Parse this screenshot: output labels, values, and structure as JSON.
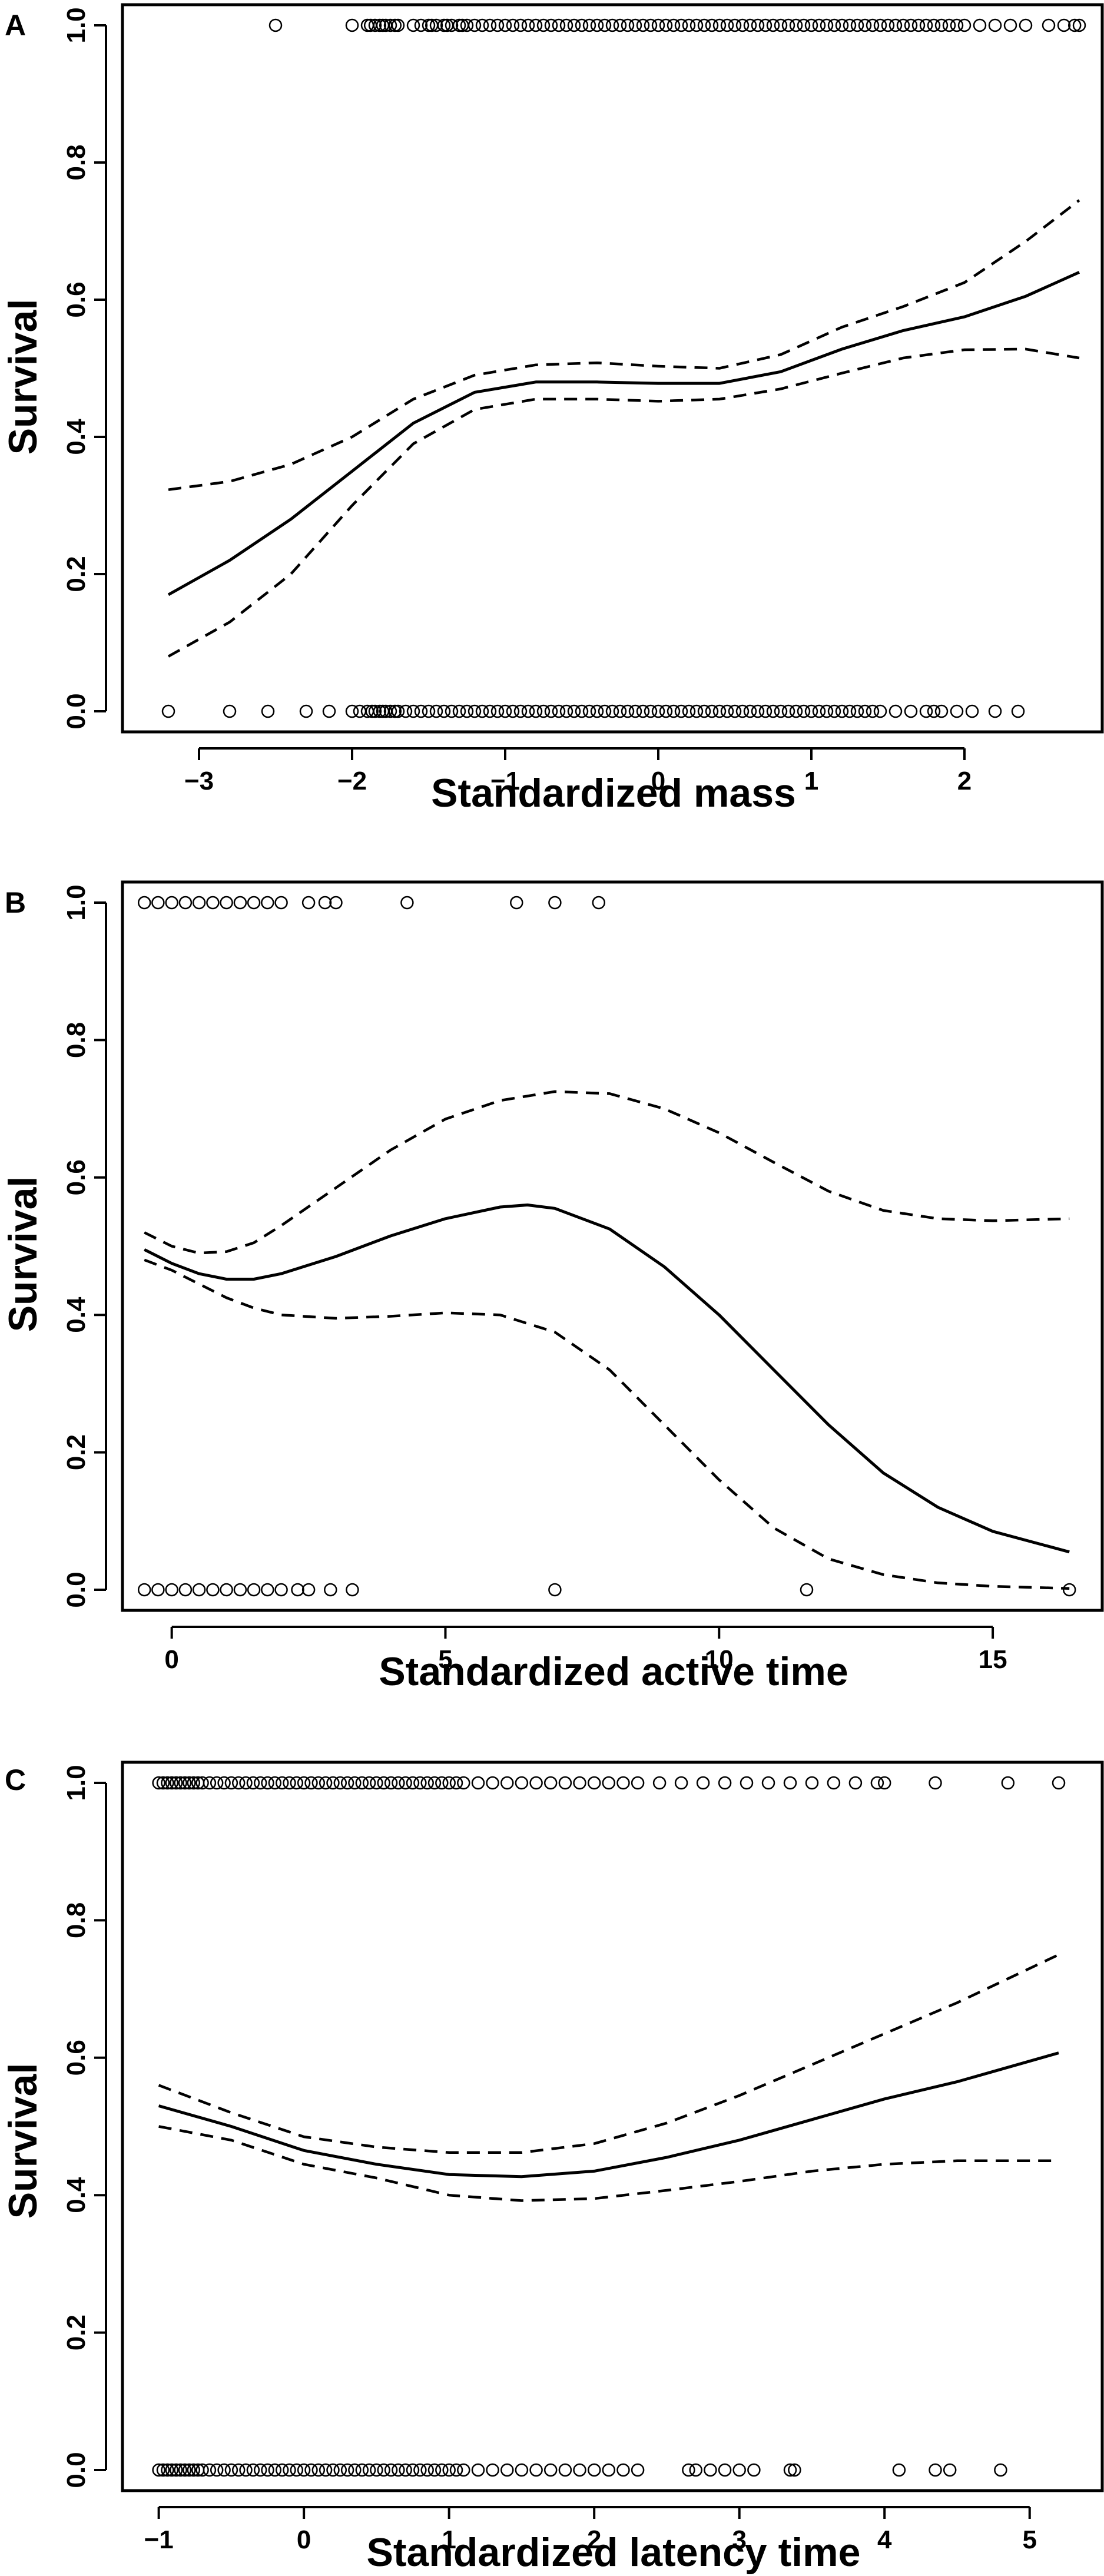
{
  "chart_data": [
    {
      "panel": "A",
      "type": "line",
      "xlabel": "Standardized mass",
      "ylabel": "Survival",
      "xlim": [
        -3.5,
        2.9
      ],
      "ylim": [
        -0.03,
        1.03
      ],
      "xticks": [
        -3,
        -2,
        -1,
        0,
        1,
        2
      ],
      "xtick_labels": [
        "−3",
        "−2",
        "−1",
        "0",
        "1",
        "2"
      ],
      "yticks": [
        0.0,
        0.2,
        0.4,
        0.6,
        0.8,
        1.0
      ],
      "ytick_labels": [
        "0.0",
        "0.2",
        "0.4",
        "0.6",
        "0.8",
        "1.0"
      ],
      "series": [
        {
          "style": "solid",
          "x": [
            -3.2,
            -2.8,
            -2.4,
            -2.0,
            -1.6,
            -1.2,
            -0.8,
            -0.4,
            0.0,
            0.4,
            0.8,
            1.2,
            1.6,
            2.0,
            2.4,
            2.75
          ],
          "y": [
            0.17,
            0.22,
            0.28,
            0.35,
            0.42,
            0.465,
            0.48,
            0.48,
            0.478,
            0.478,
            0.495,
            0.528,
            0.555,
            0.575,
            0.605,
            0.64
          ]
        },
        {
          "style": "dashed",
          "x": [
            -3.2,
            -2.8,
            -2.4,
            -2.0,
            -1.6,
            -1.2,
            -0.8,
            -0.4,
            0.0,
            0.4,
            0.8,
            1.2,
            1.6,
            2.0,
            2.4,
            2.75
          ],
          "y": [
            0.323,
            0.335,
            0.36,
            0.4,
            0.455,
            0.49,
            0.505,
            0.508,
            0.503,
            0.5,
            0.52,
            0.56,
            0.59,
            0.625,
            0.685,
            0.745
          ]
        },
        {
          "style": "dashed",
          "x": [
            -3.2,
            -2.8,
            -2.4,
            -2.0,
            -1.6,
            -1.2,
            -0.8,
            -0.4,
            0.0,
            0.4,
            0.8,
            1.2,
            1.6,
            2.0,
            2.4,
            2.75
          ],
          "y": [
            0.08,
            0.13,
            0.2,
            0.3,
            0.39,
            0.44,
            0.455,
            0.455,
            0.452,
            0.455,
            0.47,
            0.493,
            0.515,
            0.527,
            0.528,
            0.515
          ]
        }
      ],
      "points_at_1": [
        -2.5,
        -2.0,
        -1.9,
        -1.88,
        -1.85,
        -1.82,
        -1.8,
        -1.78,
        -1.75,
        -1.72,
        -1.7,
        -1.6,
        -1.55,
        -1.5,
        -1.48,
        -1.45,
        -1.4,
        -1.38,
        -1.35,
        -1.3,
        -1.28,
        -1.25,
        -1.2,
        -1.15,
        -1.1,
        -1.05,
        -1.0,
        -0.95,
        -0.9,
        -0.85,
        -0.8,
        -0.75,
        -0.7,
        -0.65,
        -0.6,
        -0.55,
        -0.5,
        -0.45,
        -0.4,
        -0.35,
        -0.3,
        -0.25,
        -0.2,
        -0.15,
        -0.1,
        -0.05,
        0.0,
        0.05,
        0.1,
        0.15,
        0.2,
        0.25,
        0.3,
        0.35,
        0.4,
        0.45,
        0.5,
        0.55,
        0.6,
        0.65,
        0.7,
        0.75,
        0.8,
        0.85,
        0.9,
        0.95,
        1.0,
        1.05,
        1.1,
        1.15,
        1.2,
        1.25,
        1.3,
        1.35,
        1.4,
        1.45,
        1.5,
        1.55,
        1.6,
        1.65,
        1.7,
        1.75,
        1.8,
        1.85,
        1.9,
        1.95,
        2.0,
        2.1,
        2.2,
        2.3,
        2.4,
        2.55,
        2.65,
        2.72,
        2.75
      ],
      "points_at_0": [
        -3.2,
        -2.8,
        -2.55,
        -2.3,
        -2.15,
        -2.0,
        -1.95,
        -1.9,
        -1.87,
        -1.85,
        -1.82,
        -1.8,
        -1.78,
        -1.75,
        -1.72,
        -1.7,
        -1.65,
        -1.6,
        -1.55,
        -1.5,
        -1.45,
        -1.4,
        -1.35,
        -1.3,
        -1.25,
        -1.2,
        -1.15,
        -1.1,
        -1.05,
        -1.0,
        -0.95,
        -0.9,
        -0.85,
        -0.8,
        -0.75,
        -0.7,
        -0.65,
        -0.6,
        -0.55,
        -0.5,
        -0.45,
        -0.4,
        -0.35,
        -0.3,
        -0.25,
        -0.2,
        -0.15,
        -0.1,
        -0.05,
        0.0,
        0.05,
        0.1,
        0.15,
        0.2,
        0.25,
        0.3,
        0.35,
        0.4,
        0.45,
        0.5,
        0.55,
        0.6,
        0.65,
        0.7,
        0.75,
        0.8,
        0.85,
        0.9,
        0.95,
        1.0,
        1.05,
        1.1,
        1.15,
        1.2,
        1.25,
        1.3,
        1.35,
        1.4,
        1.45,
        1.55,
        1.65,
        1.75,
        1.8,
        1.85,
        1.95,
        2.05,
        2.2,
        2.35
      ]
    },
    {
      "panel": "B",
      "type": "line",
      "xlabel": "Standardized active time",
      "ylabel": "Survival",
      "xlim": [
        -0.9,
        17.0
      ],
      "ylim": [
        -0.03,
        1.03
      ],
      "xticks": [
        0,
        5,
        10,
        15
      ],
      "xtick_labels": [
        "0",
        "5",
        "10",
        "15"
      ],
      "yticks": [
        0.0,
        0.2,
        0.4,
        0.6,
        0.8,
        1.0
      ],
      "ytick_labels": [
        "0.0",
        "0.2",
        "0.4",
        "0.6",
        "0.8",
        "1.0"
      ],
      "series": [
        {
          "style": "solid",
          "x": [
            -0.5,
            0.0,
            0.5,
            1.0,
            1.5,
            2.0,
            3.0,
            4.0,
            5.0,
            6.0,
            6.5,
            7.0,
            8.0,
            9.0,
            10.0,
            11.0,
            12.0,
            13.0,
            14.0,
            15.0,
            16.4
          ],
          "y": [
            0.495,
            0.475,
            0.46,
            0.452,
            0.452,
            0.46,
            0.485,
            0.515,
            0.54,
            0.557,
            0.56,
            0.555,
            0.525,
            0.47,
            0.4,
            0.32,
            0.24,
            0.17,
            0.12,
            0.085,
            0.055
          ]
        },
        {
          "style": "dashed",
          "x": [
            -0.5,
            0.0,
            0.5,
            1.0,
            1.5,
            2.0,
            3.0,
            4.0,
            5.0,
            6.0,
            7.0,
            8.0,
            9.0,
            10.0,
            11.0,
            12.0,
            13.0,
            14.0,
            15.0,
            16.4
          ],
          "y": [
            0.52,
            0.5,
            0.49,
            0.492,
            0.505,
            0.53,
            0.585,
            0.64,
            0.685,
            0.712,
            0.725,
            0.722,
            0.7,
            0.665,
            0.622,
            0.58,
            0.552,
            0.54,
            0.537,
            0.54
          ]
        },
        {
          "style": "dashed",
          "x": [
            -0.5,
            0.0,
            0.5,
            1.0,
            1.5,
            2.0,
            3.0,
            4.0,
            5.0,
            6.0,
            7.0,
            8.0,
            9.0,
            10.0,
            11.0,
            12.0,
            13.0,
            14.0,
            15.0,
            16.4
          ],
          "y": [
            0.48,
            0.465,
            0.445,
            0.425,
            0.41,
            0.4,
            0.395,
            0.398,
            0.403,
            0.4,
            0.375,
            0.32,
            0.24,
            0.16,
            0.09,
            0.045,
            0.022,
            0.01,
            0.005,
            0.002
          ]
        }
      ],
      "points_at_1": [
        -0.5,
        -0.25,
        0.0,
        0.25,
        0.5,
        0.75,
        1.0,
        1.25,
        1.5,
        1.75,
        2.0,
        2.5,
        2.8,
        3.0,
        4.3,
        6.3,
        7.0,
        7.8
      ],
      "points_at_0": [
        -0.5,
        -0.25,
        0.0,
        0.25,
        0.5,
        0.75,
        1.0,
        1.25,
        1.5,
        1.75,
        2.0,
        2.3,
        2.5,
        2.9,
        3.3,
        7.0,
        11.6,
        16.4
      ]
    },
    {
      "panel": "C",
      "type": "line",
      "xlabel": "Standardized latency time",
      "ylabel": "Survival",
      "xlim": [
        -1.25,
        5.5
      ],
      "ylim": [
        -0.03,
        1.03
      ],
      "xticks": [
        -1,
        0,
        1,
        2,
        3,
        4,
        5
      ],
      "xtick_labels": [
        "−1",
        "0",
        "1",
        "2",
        "3",
        "4",
        "5"
      ],
      "yticks": [
        0.0,
        0.2,
        0.4,
        0.6,
        0.8,
        1.0
      ],
      "ytick_labels": [
        "0.0",
        "0.2",
        "0.4",
        "0.6",
        "0.8",
        "1.0"
      ],
      "series": [
        {
          "style": "solid",
          "x": [
            -1.0,
            -0.5,
            0.0,
            0.5,
            1.0,
            1.5,
            2.0,
            2.5,
            3.0,
            3.5,
            4.0,
            4.5,
            5.2
          ],
          "y": [
            0.53,
            0.5,
            0.465,
            0.445,
            0.43,
            0.427,
            0.435,
            0.455,
            0.48,
            0.51,
            0.54,
            0.565,
            0.607
          ]
        },
        {
          "style": "dashed",
          "x": [
            -1.0,
            -0.5,
            0.0,
            0.5,
            1.0,
            1.5,
            2.0,
            2.5,
            3.0,
            3.5,
            4.0,
            4.5,
            5.2
          ],
          "y": [
            0.56,
            0.52,
            0.485,
            0.47,
            0.462,
            0.462,
            0.475,
            0.505,
            0.545,
            0.59,
            0.635,
            0.68,
            0.75
          ]
        },
        {
          "style": "dashed",
          "x": [
            -1.0,
            -0.5,
            0.0,
            0.5,
            1.0,
            1.5,
            2.0,
            2.5,
            3.0,
            3.5,
            4.0,
            4.5,
            5.2
          ],
          "y": [
            0.5,
            0.48,
            0.445,
            0.425,
            0.4,
            0.392,
            0.395,
            0.407,
            0.42,
            0.435,
            0.445,
            0.45,
            0.45
          ]
        }
      ],
      "points_at_1": [
        -1.0,
        -0.97,
        -0.94,
        -0.91,
        -0.88,
        -0.85,
        -0.82,
        -0.79,
        -0.76,
        -0.73,
        -0.7,
        -0.65,
        -0.6,
        -0.55,
        -0.5,
        -0.45,
        -0.4,
        -0.35,
        -0.3,
        -0.25,
        -0.2,
        -0.15,
        -0.1,
        -0.05,
        0.0,
        0.05,
        0.1,
        0.15,
        0.2,
        0.25,
        0.3,
        0.35,
        0.4,
        0.45,
        0.5,
        0.55,
        0.6,
        0.65,
        0.7,
        0.75,
        0.8,
        0.85,
        0.9,
        0.95,
        1.0,
        1.05,
        1.1,
        1.2,
        1.3,
        1.4,
        1.5,
        1.6,
        1.7,
        1.8,
        1.9,
        2.0,
        2.1,
        2.2,
        2.3,
        2.45,
        2.6,
        2.75,
        2.9,
        3.05,
        3.2,
        3.35,
        3.5,
        3.65,
        3.8,
        3.95,
        4.0,
        4.35,
        4.85,
        5.2
      ],
      "points_at_0": [
        -1.0,
        -0.97,
        -0.94,
        -0.91,
        -0.88,
        -0.85,
        -0.82,
        -0.79,
        -0.76,
        -0.73,
        -0.7,
        -0.65,
        -0.6,
        -0.55,
        -0.5,
        -0.45,
        -0.4,
        -0.35,
        -0.3,
        -0.25,
        -0.2,
        -0.15,
        -0.1,
        -0.05,
        0.0,
        0.05,
        0.1,
        0.15,
        0.2,
        0.25,
        0.3,
        0.35,
        0.4,
        0.45,
        0.5,
        0.55,
        0.6,
        0.65,
        0.7,
        0.75,
        0.8,
        0.85,
        0.9,
        0.95,
        1.0,
        1.05,
        1.1,
        1.2,
        1.3,
        1.4,
        1.5,
        1.6,
        1.7,
        1.8,
        1.9,
        2.0,
        2.1,
        2.2,
        2.3,
        2.65,
        2.7,
        2.8,
        2.9,
        3.0,
        3.1,
        3.35,
        3.38,
        4.1,
        4.35,
        4.45,
        4.8
      ]
    }
  ]
}
